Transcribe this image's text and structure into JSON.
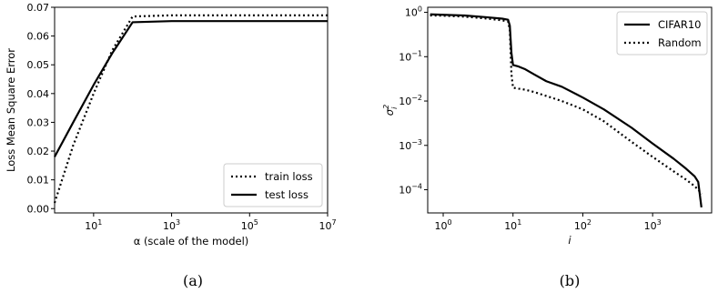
{
  "chart_data": [
    {
      "type": "line",
      "caption": "(a)",
      "xlabel": "α (scale of the model)",
      "ylabel": "Loss Mean Square Error",
      "xscale": "log",
      "xlim": [
        1,
        10000000
      ],
      "ylim": [
        -0.0015,
        0.07
      ],
      "x_ticks": [
        {
          "value": 10,
          "base": "10",
          "exp": "1"
        },
        {
          "value": 1000,
          "base": "10",
          "exp": "3"
        },
        {
          "value": 100000,
          "base": "10",
          "exp": "5"
        },
        {
          "value": 10000000,
          "base": "10",
          "exp": "7"
        }
      ],
      "y_ticks": [
        {
          "value": 0.0,
          "label": "0.00"
        },
        {
          "value": 0.01,
          "label": "0.01"
        },
        {
          "value": 0.02,
          "label": "0.02"
        },
        {
          "value": 0.03,
          "label": "0.03"
        },
        {
          "value": 0.04,
          "label": "0.04"
        },
        {
          "value": 0.05,
          "label": "0.05"
        },
        {
          "value": 0.06,
          "label": "0.06"
        },
        {
          "value": 0.07,
          "label": "0.07"
        }
      ],
      "legend_position": "lower-right",
      "series": [
        {
          "name": "train loss",
          "style": "dotted",
          "x": [
            1,
            3,
            10,
            30,
            100,
            1000,
            10000,
            100000,
            1000000,
            10000000
          ],
          "y": [
            0.002,
            0.022,
            0.04,
            0.055,
            0.0668,
            0.0672,
            0.0672,
            0.0672,
            0.0672,
            0.0672
          ]
        },
        {
          "name": "test loss",
          "style": "solid",
          "x": [
            1,
            3,
            10,
            30,
            100,
            1000,
            10000,
            100000,
            1000000,
            10000000
          ],
          "y": [
            0.018,
            0.03,
            0.043,
            0.054,
            0.0648,
            0.0652,
            0.0652,
            0.0652,
            0.0652,
            0.0652
          ]
        }
      ]
    },
    {
      "type": "line",
      "caption": "(b)",
      "xlabel": "i",
      "ylabel": "σ",
      "ylabel_sup": "2",
      "ylabel_sub": "i",
      "xscale": "log",
      "yscale": "log",
      "xlim": [
        0.6,
        7000
      ],
      "ylim": [
        3e-05,
        1.3
      ],
      "x_ticks": [
        {
          "value": 1,
          "base": "10",
          "exp": "0"
        },
        {
          "value": 10,
          "base": "10",
          "exp": "1"
        },
        {
          "value": 100,
          "base": "10",
          "exp": "2"
        },
        {
          "value": 1000,
          "base": "10",
          "exp": "3"
        }
      ],
      "y_ticks": [
        {
          "value": 1,
          "base": "10",
          "exp": "0"
        },
        {
          "value": 0.1,
          "base": "10",
          "exp": "−1"
        },
        {
          "value": 0.01,
          "base": "10",
          "exp": "−2"
        },
        {
          "value": 0.001,
          "base": "10",
          "exp": "−3"
        },
        {
          "value": 0.0001,
          "base": "10",
          "exp": "−4"
        }
      ],
      "legend_position": "top-right",
      "series": [
        {
          "name": "CIFAR10",
          "style": "solid",
          "x": [
            0.65,
            1,
            2,
            4,
            7,
            8.5,
            9,
            9.5,
            10,
            12,
            15,
            20,
            30,
            50,
            100,
            200,
            500,
            1000,
            2000,
            3000,
            4000,
            4500,
            5000
          ],
          "y": [
            0.9,
            0.88,
            0.85,
            0.78,
            0.72,
            0.68,
            0.5,
            0.12,
            0.065,
            0.06,
            0.052,
            0.04,
            0.028,
            0.021,
            0.012,
            0.0065,
            0.0025,
            0.0011,
            0.0005,
            0.0003,
            0.0002,
            0.00015,
            4e-05
          ]
        },
        {
          "name": "Random",
          "style": "dotted",
          "x": [
            0.65,
            1,
            2,
            4,
            7,
            8.5,
            9,
            9.5,
            10,
            12,
            15,
            20,
            30,
            50,
            100,
            200,
            500,
            1000,
            2000,
            3000,
            4000,
            4500,
            5000
          ],
          "y": [
            0.85,
            0.84,
            0.8,
            0.73,
            0.66,
            0.62,
            0.4,
            0.04,
            0.02,
            0.019,
            0.018,
            0.016,
            0.013,
            0.01,
            0.0065,
            0.0035,
            0.0012,
            0.00055,
            0.00026,
            0.00017,
            0.00012,
            0.0001,
            8e-05
          ]
        }
      ]
    }
  ]
}
